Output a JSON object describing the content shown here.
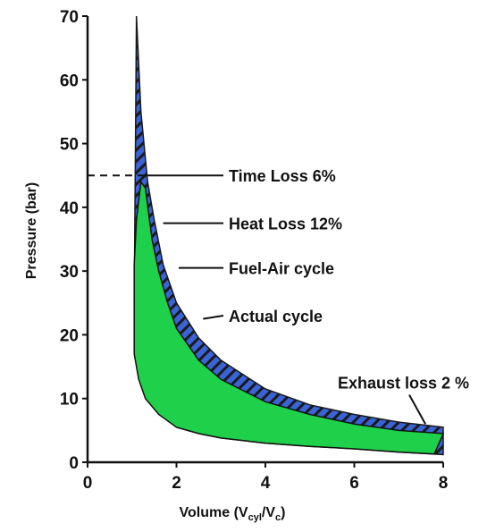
{
  "chart_data": {
    "type": "area",
    "xlabel": {
      "main": "Volume (V",
      "sub1": "cyl",
      "mid": "/V",
      "sub2": "c",
      "end": ")"
    },
    "ylabel": "Pressure (bar)",
    "xlim": [
      0,
      8
    ],
    "ylim": [
      0,
      70
    ],
    "xticks": [
      0,
      2,
      4,
      6,
      8
    ],
    "yticks": [
      0,
      10,
      20,
      30,
      40,
      50,
      60,
      70
    ],
    "grid": false,
    "colors": {
      "fuel_air_band": "#3a63d6",
      "actual_cycle_fill": "#1fd14a",
      "stripe": "#1a1a1a"
    },
    "series": [
      {
        "x": [
          1.1,
          1.2,
          1.35,
          1.5,
          1.7,
          2.0,
          2.5,
          3.0,
          4.0,
          5.0,
          6.0,
          7.0,
          8.0,
          8.0,
          7.0,
          6.0,
          5.0,
          4.0,
          3.0,
          2.5,
          2.0,
          1.6,
          1.3,
          1.1,
          1.05,
          1.1
        ],
        "y": [
          70,
          55,
          44,
          38,
          31,
          25,
          19.5,
          16,
          11.5,
          9,
          7.5,
          6.3,
          5.5,
          1.2,
          1.6,
          2.1,
          2.5,
          3.0,
          3.8,
          4.5,
          5.5,
          8,
          12,
          17,
          25,
          70
        ]
      },
      {
        "x": [
          1.05,
          1.1,
          1.2,
          1.3,
          1.45,
          1.6,
          1.8,
          2.0,
          2.5,
          3.0,
          4.0,
          5.0,
          6.0,
          7.0,
          8.0,
          7.8,
          7.0,
          6.0,
          5.0,
          4.0,
          3.0,
          2.5,
          2.0,
          1.6,
          1.3,
          1.15,
          1.05,
          1.05
        ],
        "y": [
          31,
          38,
          44,
          43,
          35,
          30,
          25,
          21,
          16,
          13,
          9.5,
          7.5,
          6,
          5,
          4.5,
          1.3,
          1.6,
          2.1,
          2.5,
          3.0,
          3.8,
          4.5,
          5.5,
          7.5,
          10,
          13,
          17,
          31
        ]
      }
    ],
    "annotations": [
      {
        "text": "Time Loss 6%",
        "tip_x": 1.25,
        "tip_y": 45,
        "text_y": 45
      },
      {
        "text": "Heat Loss 12%",
        "tip_x": 1.7,
        "tip_y": 37.5,
        "text_y": 37.5
      },
      {
        "text": "Fuel-Air cycle",
        "tip_x": 2.05,
        "tip_y": 30.5,
        "text_y": 30.5
      },
      {
        "text": "Actual cycle",
        "tip_x": 2.6,
        "tip_y": 22.5,
        "text_y": 23
      },
      {
        "text": "Exhaust loss 2 %",
        "tip_x": 7.6,
        "tip_y": 6,
        "text_y": 11
      }
    ]
  }
}
